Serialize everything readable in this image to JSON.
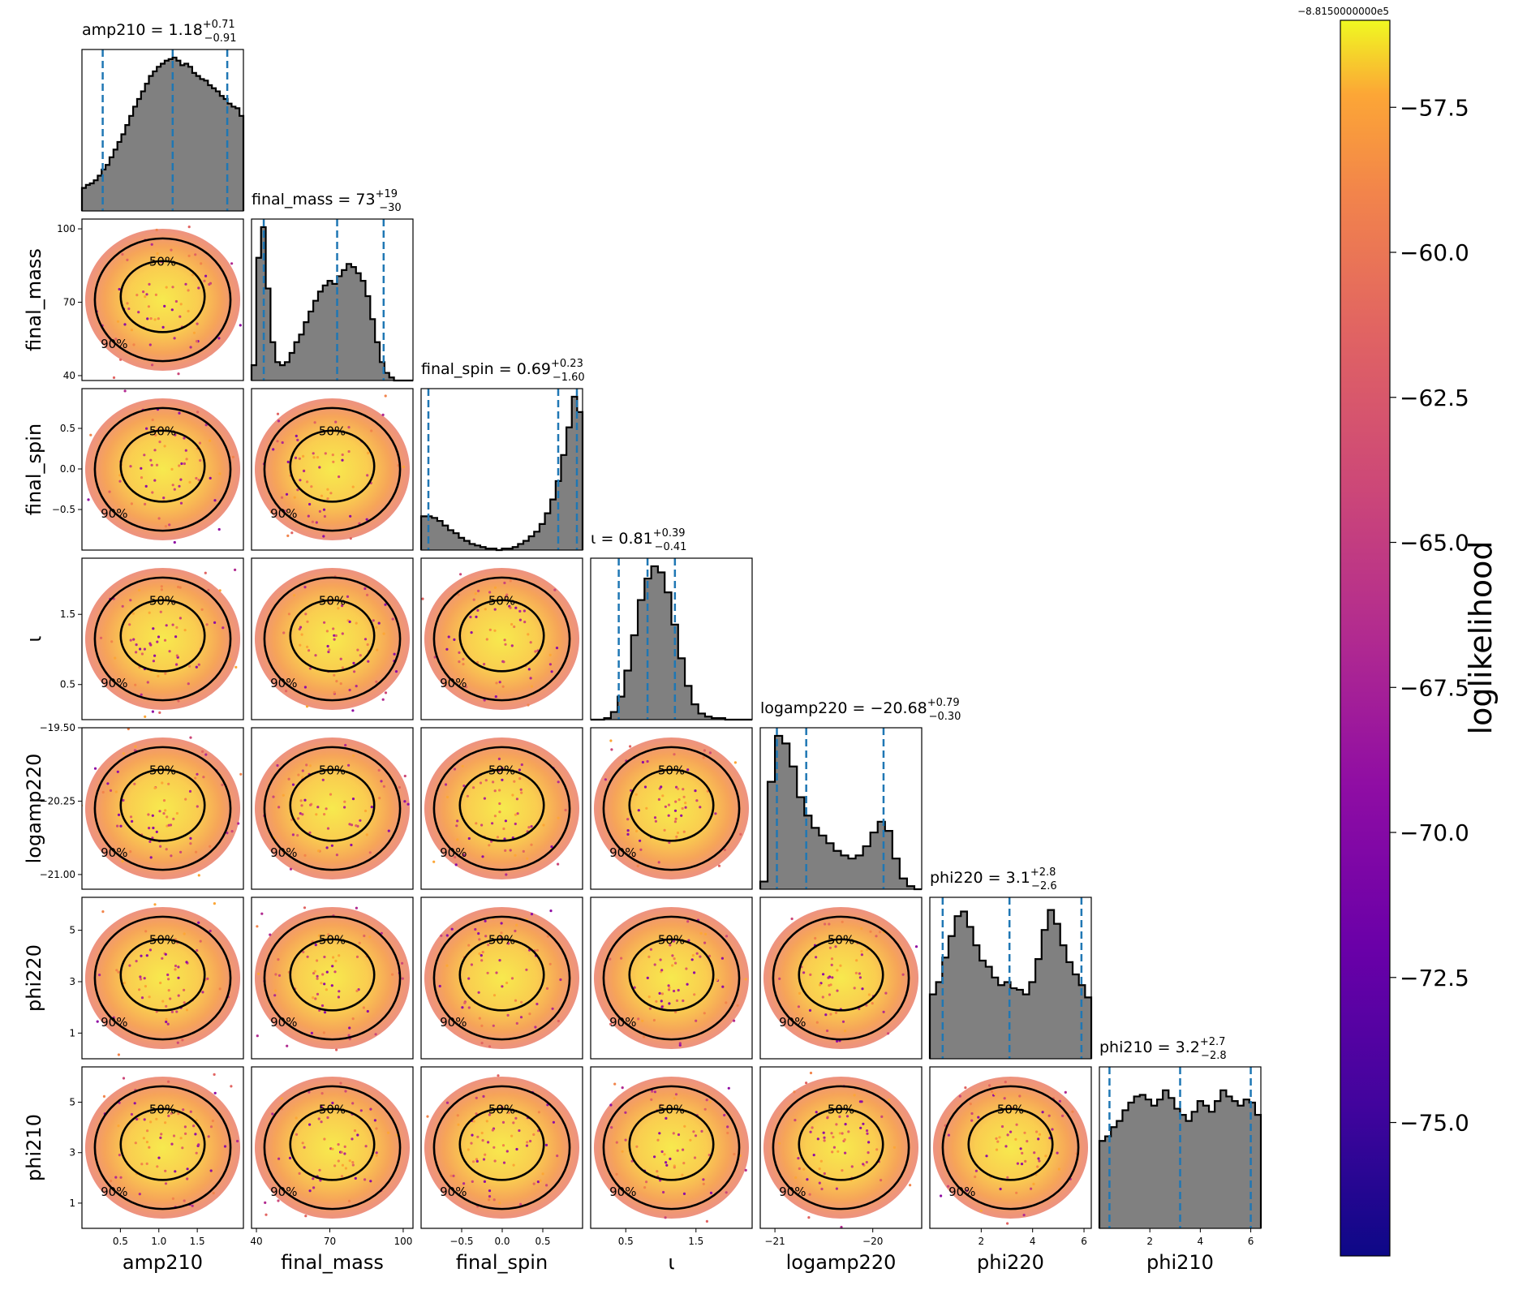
{
  "chart_data": {
    "type": "scatter",
    "kind": "corner-plot",
    "parameters": [
      {
        "name": "amp210",
        "title": "amp210 = 1.18",
        "median": "1.18",
        "plus": "+0.71",
        "minus": "−0.91",
        "range": [
          0.0,
          2.1
        ],
        "quantiles": [
          0.27,
          1.18,
          1.89
        ],
        "ticks": [
          0.5,
          1.0,
          1.5
        ],
        "tick_labels": [
          "0.5",
          "1.0",
          "1.5"
        ],
        "hist": [
          0.15,
          0.17,
          0.18,
          0.2,
          0.23,
          0.27,
          0.3,
          0.35,
          0.4,
          0.45,
          0.5,
          0.56,
          0.62,
          0.68,
          0.73,
          0.78,
          0.83,
          0.88,
          0.91,
          0.94,
          0.96,
          0.98,
          0.99,
          1.0,
          0.98,
          0.95,
          0.96,
          0.94,
          0.9,
          0.88,
          0.86,
          0.85,
          0.82,
          0.8,
          0.78,
          0.75,
          0.73,
          0.7,
          0.68,
          0.67,
          0.62
        ]
      },
      {
        "name": "final_mass",
        "title": "final_mass = 73",
        "median": "73",
        "plus": "+19",
        "minus": "−30",
        "range": [
          38,
          104
        ],
        "quantiles": [
          43,
          73,
          92
        ],
        "ticks": [
          40,
          70,
          100
        ],
        "tick_labels": [
          "40",
          "70",
          "100"
        ],
        "hist": [
          0.1,
          0.8,
          1.0,
          0.6,
          0.25,
          0.12,
          0.1,
          0.12,
          0.18,
          0.25,
          0.3,
          0.38,
          0.45,
          0.52,
          0.58,
          0.62,
          0.65,
          0.63,
          0.68,
          0.72,
          0.76,
          0.74,
          0.7,
          0.65,
          0.55,
          0.4,
          0.25,
          0.12,
          0.05,
          0.02,
          0.0,
          0.0,
          0.0,
          0.0
        ]
      },
      {
        "name": "final_spin",
        "title": "final_spin = 0.69",
        "median": "0.69",
        "plus": "+0.23",
        "minus": "−1.60",
        "range": [
          -1.0,
          0.99
        ],
        "quantiles": [
          -0.91,
          0.69,
          0.92
        ],
        "ticks": [
          -0.5,
          0.0,
          0.5
        ],
        "tick_labels": [
          "−0.5",
          "0.0",
          "0.5"
        ],
        "hist": [
          0.22,
          0.22,
          0.21,
          0.19,
          0.16,
          0.13,
          0.11,
          0.08,
          0.06,
          0.04,
          0.03,
          0.02,
          0.01,
          0.01,
          0.0,
          0.01,
          0.01,
          0.02,
          0.04,
          0.06,
          0.09,
          0.12,
          0.17,
          0.24,
          0.33,
          0.45,
          0.62,
          0.8,
          1.0,
          0.9
        ]
      },
      {
        "name": "ι",
        "title": "ι = 0.81",
        "median": "0.81",
        "plus": "+0.39",
        "minus": "−0.41",
        "range": [
          0.0,
          2.3
        ],
        "quantiles": [
          0.4,
          0.81,
          1.2
        ],
        "ticks": [
          0.5,
          1.5
        ],
        "tick_labels": [
          "0.5",
          "1.5"
        ],
        "hist": [
          0.0,
          0.0,
          0.01,
          0.05,
          0.15,
          0.32,
          0.55,
          0.78,
          0.92,
          1.0,
          0.96,
          0.83,
          0.62,
          0.4,
          0.22,
          0.1,
          0.04,
          0.02,
          0.01,
          0.01,
          0.0,
          0.0,
          0.0,
          0.0
        ]
      },
      {
        "name": "logamp220",
        "title": "logamp220 = −20.68",
        "median": "−20.68",
        "plus": "+0.79",
        "minus": "−0.30",
        "range": [
          -21.15,
          -19.5
        ],
        "quantiles": [
          -20.98,
          -20.68,
          -19.89
        ],
        "ticks": [
          -21,
          -20
        ],
        "tick_labels": [
          "−21",
          "−20"
        ],
        "hist": [
          0.05,
          0.7,
          1.0,
          0.95,
          0.8,
          0.6,
          0.48,
          0.4,
          0.35,
          0.3,
          0.25,
          0.22,
          0.2,
          0.22,
          0.28,
          0.37,
          0.44,
          0.38,
          0.2,
          0.07,
          0.02,
          0.0
        ]
      },
      {
        "name": "phi220",
        "title": "phi220 = 3.1",
        "median": "3.1",
        "plus": "+2.8",
        "minus": "−2.6",
        "range": [
          0.0,
          6.283
        ],
        "quantiles": [
          0.5,
          3.1,
          5.9
        ],
        "ticks": [
          2,
          4,
          6
        ],
        "tick_labels": [
          "2",
          "4",
          "6"
        ],
        "hist": [
          0.42,
          0.5,
          0.66,
          0.8,
          0.93,
          0.96,
          0.86,
          0.74,
          0.64,
          0.6,
          0.53,
          0.48,
          0.5,
          0.46,
          0.45,
          0.42,
          0.5,
          0.65,
          0.84,
          0.97,
          0.88,
          0.74,
          0.63,
          0.55,
          0.48,
          0.4
        ]
      },
      {
        "name": "phi210",
        "title": "phi210 = 3.2",
        "median": "3.2",
        "plus": "+2.7",
        "minus": "−2.8",
        "range": [
          0.0,
          6.4
        ],
        "quantiles": [
          0.4,
          3.2,
          6.0
        ],
        "ticks": [
          2,
          4,
          6
        ],
        "tick_labels": [
          "2",
          "4",
          "6"
        ],
        "hist": [
          0.57,
          0.6,
          0.66,
          0.7,
          0.77,
          0.82,
          0.86,
          0.87,
          0.84,
          0.8,
          0.84,
          0.9,
          0.85,
          0.78,
          0.74,
          0.7,
          0.76,
          0.83,
          0.8,
          0.76,
          0.83,
          0.9,
          0.86,
          0.83,
          0.8,
          0.84,
          0.82,
          0.74
        ]
      }
    ],
    "axis_labels": [
      "amp210",
      "final_mass",
      "final_spin",
      "ι",
      "logamp220",
      "phi220",
      "phi210"
    ],
    "row_labels": [
      "final_mass",
      "final_spin",
      "ι",
      "logamp220",
      "phi220",
      "phi210"
    ],
    "row_ticks": [
      {
        "ticks": [
          40,
          70,
          100
        ],
        "labels": [
          "40",
          "70",
          "100"
        ]
      },
      {
        "ticks": [
          -0.5,
          0.0,
          0.5
        ],
        "labels": [
          "−0.5",
          "0.0",
          "0.5"
        ]
      },
      {
        "ticks": [
          0.5,
          1.5
        ],
        "labels": [
          "0.5",
          "1.5"
        ]
      },
      {
        "ticks": [
          -21.0,
          -20.25,
          -19.5
        ],
        "labels": [
          "−21.00",
          "−20.25",
          "−19.50"
        ]
      },
      {
        "ticks": [
          1,
          3,
          5
        ],
        "labels": [
          "1",
          "3",
          "5"
        ]
      },
      {
        "ticks": [
          1,
          3,
          5
        ],
        "labels": [
          "1",
          "3",
          "5"
        ]
      }
    ],
    "contour_levels": [
      "50%",
      "90%"
    ],
    "colorbar": {
      "label": "loglikelihood",
      "offset": "−8.8150000000e5",
      "colormap": "plasma",
      "range": [
        -77.3,
        -56.0
      ],
      "ticks": [
        -57.5,
        -60.0,
        -62.5,
        -65.0,
        -67.5,
        -70.0,
        -72.5,
        -75.0
      ],
      "tick_labels": [
        "−57.5",
        "−60.0",
        "−62.5",
        "−65.0",
        "−67.5",
        "−70.0",
        "−72.5",
        "−75.0"
      ]
    },
    "colors": {
      "hist_fill": "#808080",
      "hist_line": "#000000",
      "quantile_line": "#1f77b4",
      "contour": "#000000"
    }
  }
}
